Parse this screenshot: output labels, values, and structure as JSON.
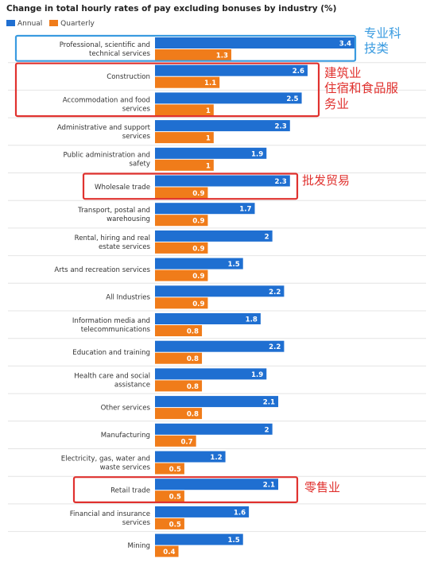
{
  "chart_data": {
    "type": "bar",
    "orientation": "horizontal",
    "title": "Change in total hourly rates of pay excluding bonuses by industry (%)",
    "categories": [
      "Professional, scientific and technical services",
      "Construction",
      "Accommodation and food services",
      "Administrative and support services",
      "Public administration and safety",
      "Wholesale trade",
      "Transport, postal and warehousing",
      "Rental, hiring and real estate services",
      "Arts and recreation services",
      "All Industries",
      "Information media and telecommunications",
      "Education and training",
      "Health care and social assistance",
      "Other services",
      "Manufacturing",
      "Electricity, gas, water and waste services",
      "Retail trade",
      "Financial and insurance services",
      "Mining"
    ],
    "series": [
      {
        "name": "Annual",
        "color": "#1f6fd1",
        "values": [
          3.4,
          2.6,
          2.5,
          2.3,
          1.9,
          2.3,
          1.7,
          2,
          1.5,
          2.2,
          1.8,
          2.2,
          1.9,
          2.1,
          2,
          1.2,
          2.1,
          1.6,
          1.5
        ]
      },
      {
        "name": "Quarterly",
        "color": "#f07c1a",
        "values": [
          1.3,
          1.1,
          1,
          1,
          1,
          0.9,
          0.9,
          0.9,
          0.9,
          0.9,
          0.8,
          0.8,
          0.8,
          0.8,
          0.7,
          0.5,
          0.5,
          0.5,
          0.4
        ]
      }
    ],
    "value_labels": {
      "Annual": [
        "3.4",
        "2.6",
        "2.5",
        "2.3",
        "1.9",
        "2.3",
        "1.7",
        "2",
        "1.5",
        "2.2",
        "1.8",
        "2.2",
        "1.9",
        "2.1",
        "2",
        "1.2",
        "2.1",
        "1.6",
        "1.5"
      ],
      "Quarterly": [
        "1.3",
        "1.1",
        "1",
        "1",
        "1",
        "0.9",
        "0.9",
        "0.9",
        "0.9",
        "0.9",
        "0.8",
        "0.8",
        "0.8",
        "0.8",
        "0.7",
        "0.5",
        "0.5",
        "0.5",
        "0.4"
      ]
    },
    "xlim": [
      0,
      3.4
    ],
    "grid": false,
    "legend": "top-left"
  },
  "annotations": [
    {
      "category_index": 0,
      "box_color": "#3a9be0",
      "text": "专业科\n技类",
      "text_color": "#3a9be0"
    },
    {
      "category_index": [
        1,
        2
      ],
      "box_color": "#e0322f",
      "text": "建筑业\n住宿和食品服\n务业",
      "text_color": "#e0322f"
    },
    {
      "category_index": 5,
      "box_color": "#e0322f",
      "text": "批发贸易",
      "text_color": "#e0322f"
    },
    {
      "category_index": 16,
      "box_color": "#e0322f",
      "text": "零售业",
      "text_color": "#e0322f"
    }
  ]
}
